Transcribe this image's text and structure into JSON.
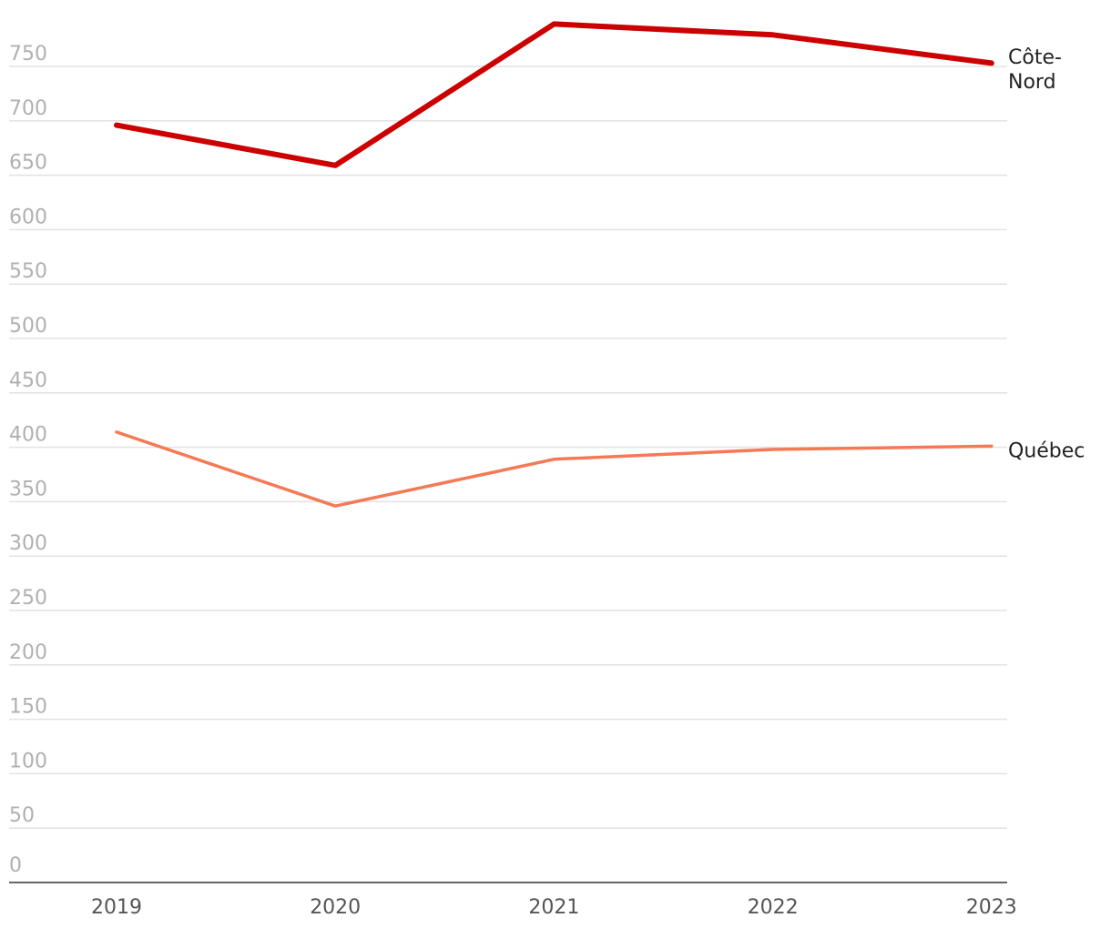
{
  "chart_data": {
    "type": "line",
    "x": [
      "2019",
      "2020",
      "2021",
      "2022",
      "2023"
    ],
    "ylim": [
      0,
      750
    ],
    "yticks": [
      "0",
      "50",
      "100",
      "150",
      "200",
      "250",
      "300",
      "350",
      "400",
      "450",
      "500",
      "550",
      "600",
      "650",
      "700",
      "750"
    ],
    "grid": true,
    "legend": "direct labels at line ends (right)",
    "series": [
      {
        "name": "Côte-Nord",
        "label_lines": [
          "Côte-",
          "Nord"
        ],
        "values": [
          696,
          659,
          789,
          779,
          753
        ],
        "color": "#cc0000"
      },
      {
        "name": "Québec",
        "label_lines": [
          "Québec"
        ],
        "values": [
          414,
          346,
          389,
          398,
          401
        ],
        "color": "#f47a55"
      }
    ]
  }
}
